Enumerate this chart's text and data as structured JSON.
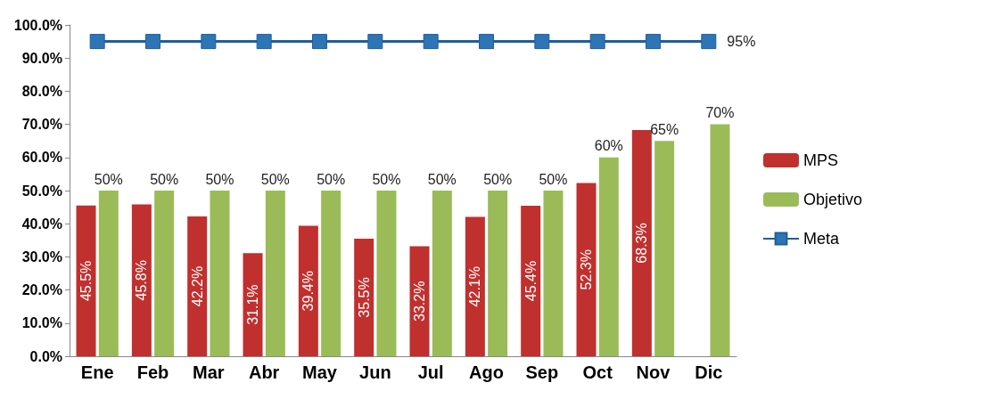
{
  "chart_data": {
    "type": "bar",
    "categories": [
      "Ene",
      "Feb",
      "Mar",
      "Abr",
      "May",
      "Jun",
      "Jul",
      "Ago",
      "Sep",
      "Oct",
      "Nov",
      "Dic"
    ],
    "series": [
      {
        "name": "MPS",
        "color": "#c0302e",
        "values": [
          45.5,
          45.8,
          42.2,
          31.1,
          39.4,
          35.5,
          33.2,
          42.1,
          45.4,
          52.3,
          68.3,
          null
        ],
        "value_labels": [
          "45.5%",
          "45.8%",
          "42.2%",
          "31.1%",
          "39.4%",
          "35.5%",
          "33.2%",
          "42.1%",
          "45.4%",
          "52.3%",
          "68.3%",
          null
        ]
      },
      {
        "name": "Objetivo",
        "color": "#9bbb59",
        "values": [
          50,
          50,
          50,
          50,
          50,
          50,
          50,
          50,
          50,
          60,
          65,
          70
        ],
        "value_labels": [
          "50%",
          "50%",
          "50%",
          "50%",
          "50%",
          "50%",
          "50%",
          "50%",
          "50%",
          "60%",
          "65%",
          "70%"
        ]
      },
      {
        "name": "Meta",
        "type": "line",
        "color": "#1f5f9a",
        "marker": "square",
        "values": [
          95,
          95,
          95,
          95,
          95,
          95,
          95,
          95,
          95,
          95,
          95,
          95
        ],
        "value_labels": [
          null,
          null,
          null,
          null,
          null,
          null,
          null,
          null,
          null,
          null,
          null,
          "95%"
        ]
      }
    ],
    "ylim": [
      0,
      100
    ],
    "yticks": [
      {
        "value": 0,
        "label": "0.0%"
      },
      {
        "value": 10,
        "label": "10.0%"
      },
      {
        "value": 20,
        "label": "20.0%"
      },
      {
        "value": 30,
        "label": "30.0%"
      },
      {
        "value": 40,
        "label": "40.0%"
      },
      {
        "value": 50,
        "label": "50.0%"
      },
      {
        "value": 60,
        "label": "60.0%"
      },
      {
        "value": 70,
        "label": "70.0%"
      },
      {
        "value": 80,
        "label": "80.0%"
      },
      {
        "value": 90,
        "label": "90.0%"
      },
      {
        "value": 100,
        "label": "100.0%"
      }
    ],
    "legend": "right"
  }
}
